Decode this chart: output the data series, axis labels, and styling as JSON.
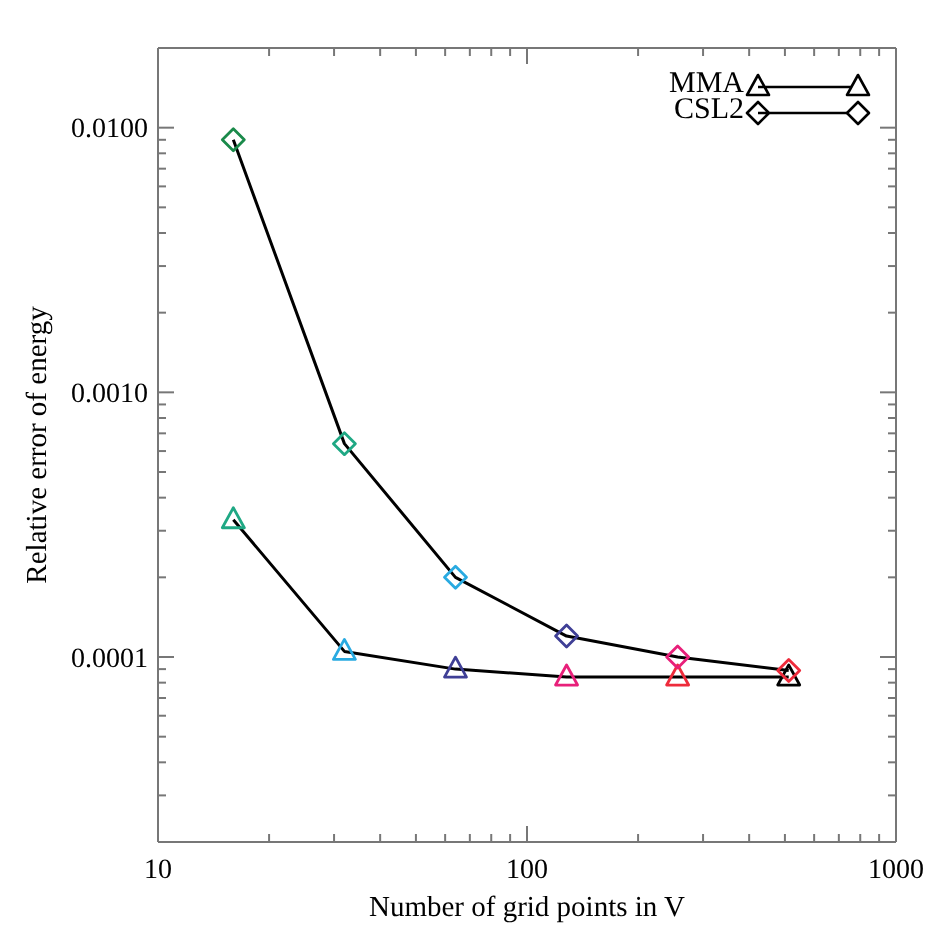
{
  "chart_data": {
    "type": "line",
    "xlabel": "Number of grid points in V",
    "ylabel": "Relative error of energy",
    "x": [
      16,
      32,
      64,
      128,
      256,
      512
    ],
    "series": [
      {
        "name": "MMA",
        "color": "#000000",
        "marker": "triangle",
        "colors": [
          "#1fa884",
          "#29aae1",
          "#3f3f96",
          "#e8207a",
          "#ee2b3b",
          "#000000"
        ],
        "values": [
          0.00033,
          0.000105,
          9e-05,
          8.4e-05,
          8.4e-05,
          8.4e-05
        ]
      },
      {
        "name": "CSL2",
        "color": "#000000",
        "marker": "diamond",
        "colors": [
          "#1a8a4a",
          "#1fa884",
          "#29aae1",
          "#3f3f96",
          "#e8207a",
          "#ee2b3b"
        ],
        "values": [
          0.009,
          0.00064,
          0.0002,
          0.00012,
          0.0001,
          8.9e-05
        ]
      }
    ],
    "log": "xy",
    "xlim": [
      10,
      1000
    ],
    "ylim": [
      2e-05,
      0.02
    ],
    "xticks": [
      10,
      {
        "value": 20,
        "label": null
      },
      {
        "value": 30,
        "label": null
      },
      {
        "value": 40,
        "label": null
      },
      {
        "value": 50,
        "label": null
      },
      {
        "value": 60,
        "label": null
      },
      {
        "value": 70,
        "label": null
      },
      {
        "value": 80,
        "label": null
      },
      {
        "value": 90,
        "label": null
      },
      100,
      {
        "value": 200,
        "label": null
      },
      {
        "value": 300,
        "label": null
      },
      {
        "value": 400,
        "label": null
      },
      {
        "value": 500,
        "label": null
      },
      {
        "value": 600,
        "label": null
      },
      {
        "value": 700,
        "label": null
      },
      {
        "value": 800,
        "label": null
      },
      {
        "value": 900,
        "label": null
      },
      1000
    ],
    "yticks": [
      {
        "value": 3e-05,
        "label": null
      },
      {
        "value": 4e-05,
        "label": null
      },
      {
        "value": 5e-05,
        "label": null
      },
      {
        "value": 6e-05,
        "label": null
      },
      {
        "value": 7e-05,
        "label": null
      },
      {
        "value": 8e-05,
        "label": null
      },
      {
        "value": 9e-05,
        "label": null
      },
      0.0001,
      {
        "value": 0.0002,
        "label": null
      },
      {
        "value": 0.0003,
        "label": null
      },
      {
        "value": 0.0004,
        "label": null
      },
      {
        "value": 0.0005,
        "label": null
      },
      {
        "value": 0.0006,
        "label": null
      },
      {
        "value": 0.0007,
        "label": null
      },
      {
        "value": 0.0008,
        "label": null
      },
      {
        "value": 0.0009,
        "label": null
      },
      {
        "value": 0.001,
        "label": "0.0010"
      },
      {
        "value": 0.002,
        "label": null
      },
      {
        "value": 0.003,
        "label": null
      },
      {
        "value": 0.004,
        "label": null
      },
      {
        "value": 0.005,
        "label": null
      },
      {
        "value": 0.006,
        "label": null
      },
      {
        "value": 0.007,
        "label": null
      },
      {
        "value": 0.008,
        "label": null
      },
      {
        "value": 0.009,
        "label": null
      },
      {
        "value": 0.01,
        "label": "0.0100"
      }
    ],
    "legend": "top right"
  }
}
